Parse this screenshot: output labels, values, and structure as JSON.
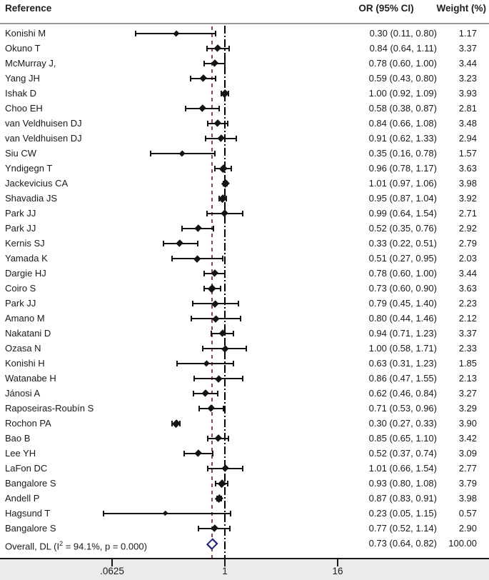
{
  "header": {
    "reference": "Reference",
    "or_ci": "OR (95% CI)",
    "weight": "Weight (%)"
  },
  "axis": {
    "tick_labels": [
      ".0625",
      "1",
      "16"
    ],
    "tick_values": [
      0.0625,
      1,
      16
    ]
  },
  "colors": {
    "marker": "#141414",
    "overall_diamond_border": "#23238c",
    "overall_effect_line": "#9c4040",
    "null_line": "#000000",
    "footer_band": "#ebebeb"
  },
  "chart_data": {
    "type": "scatter",
    "subtype": "forest-plot",
    "title": "",
    "xlabel": "",
    "x_scale": "log2",
    "x_ticks": [
      0.0625,
      1,
      16
    ],
    "x_tick_labels": [
      ".0625",
      "1",
      "16"
    ],
    "null_line_x": 1,
    "overall_effect_line_x": 0.73,
    "legend_position": "none",
    "grid": false,
    "columns": [
      "Reference",
      "OR (95% CI)",
      "Weight (%)"
    ],
    "studies": [
      {
        "name": "Konishi M",
        "or": 0.3,
        "ci_low": 0.11,
        "ci_high": 0.8,
        "weight": 1.17
      },
      {
        "name": "Okuno T",
        "or": 0.84,
        "ci_low": 0.64,
        "ci_high": 1.11,
        "weight": 3.37
      },
      {
        "name": "McMurray J,",
        "or": 0.78,
        "ci_low": 0.6,
        "ci_high": 1.0,
        "weight": 3.44
      },
      {
        "name": "Yang JH",
        "or": 0.59,
        "ci_low": 0.43,
        "ci_high": 0.8,
        "weight": 3.23
      },
      {
        "name": "Ishak D",
        "or": 1.0,
        "ci_low": 0.92,
        "ci_high": 1.09,
        "weight": 3.93
      },
      {
        "name": "Choo EH",
        "or": 0.58,
        "ci_low": 0.38,
        "ci_high": 0.87,
        "weight": 2.81
      },
      {
        "name": "van Veldhuisen DJ",
        "or": 0.84,
        "ci_low": 0.66,
        "ci_high": 1.08,
        "weight": 3.48
      },
      {
        "name": "van Veldhuisen DJ",
        "or": 0.91,
        "ci_low": 0.62,
        "ci_high": 1.33,
        "weight": 2.94
      },
      {
        "name": "Siu CW",
        "or": 0.35,
        "ci_low": 0.16,
        "ci_high": 0.78,
        "weight": 1.57
      },
      {
        "name": "Yndigegn T",
        "or": 0.96,
        "ci_low": 0.78,
        "ci_high": 1.17,
        "weight": 3.63
      },
      {
        "name": "Jackevicius CA",
        "or": 1.01,
        "ci_low": 0.97,
        "ci_high": 1.06,
        "weight": 3.98
      },
      {
        "name": "Shavadia JS",
        "or": 0.95,
        "ci_low": 0.87,
        "ci_high": 1.04,
        "weight": 3.92
      },
      {
        "name": "Park JJ",
        "or": 0.99,
        "ci_low": 0.64,
        "ci_high": 1.54,
        "weight": 2.71
      },
      {
        "name": "Park JJ",
        "or": 0.52,
        "ci_low": 0.35,
        "ci_high": 0.76,
        "weight": 2.92
      },
      {
        "name": "Kernis SJ",
        "or": 0.33,
        "ci_low": 0.22,
        "ci_high": 0.51,
        "weight": 2.79
      },
      {
        "name": "Yamada K",
        "or": 0.51,
        "ci_low": 0.27,
        "ci_high": 0.95,
        "weight": 2.03
      },
      {
        "name": "Dargie HJ",
        "or": 0.78,
        "ci_low": 0.6,
        "ci_high": 1.0,
        "weight": 3.44
      },
      {
        "name": "Coiro S",
        "or": 0.73,
        "ci_low": 0.6,
        "ci_high": 0.9,
        "weight": 3.63
      },
      {
        "name": "Park JJ",
        "or": 0.79,
        "ci_low": 0.45,
        "ci_high": 1.4,
        "weight": 2.23
      },
      {
        "name": "Amano M",
        "or": 0.8,
        "ci_low": 0.44,
        "ci_high": 1.46,
        "weight": 2.12
      },
      {
        "name": "Nakatani D",
        "or": 0.94,
        "ci_low": 0.71,
        "ci_high": 1.23,
        "weight": 3.37
      },
      {
        "name": "Ozasa N",
        "or": 1.0,
        "ci_low": 0.58,
        "ci_high": 1.71,
        "weight": 2.33
      },
      {
        "name": "Konishi H",
        "or": 0.63,
        "ci_low": 0.31,
        "ci_high": 1.23,
        "weight": 1.85
      },
      {
        "name": "Watanabe H",
        "or": 0.86,
        "ci_low": 0.47,
        "ci_high": 1.55,
        "weight": 2.13
      },
      {
        "name": "Jánosi A",
        "or": 0.62,
        "ci_low": 0.46,
        "ci_high": 0.84,
        "weight": 3.27
      },
      {
        "name": "Raposeiras-Roubín S",
        "or": 0.71,
        "ci_low": 0.53,
        "ci_high": 0.96,
        "weight": 3.29
      },
      {
        "name": "Rochon PA",
        "or": 0.3,
        "ci_low": 0.27,
        "ci_high": 0.33,
        "weight": 3.9
      },
      {
        "name": "Bao B",
        "or": 0.85,
        "ci_low": 0.65,
        "ci_high": 1.1,
        "weight": 3.42
      },
      {
        "name": "Lee YH",
        "or": 0.52,
        "ci_low": 0.37,
        "ci_high": 0.74,
        "weight": 3.09
      },
      {
        "name": "LaFon DC",
        "or": 1.01,
        "ci_low": 0.66,
        "ci_high": 1.54,
        "weight": 2.77
      },
      {
        "name": "Bangalore S",
        "or": 0.93,
        "ci_low": 0.8,
        "ci_high": 1.08,
        "weight": 3.79
      },
      {
        "name": "Andell P",
        "or": 0.87,
        "ci_low": 0.83,
        "ci_high": 0.91,
        "weight": 3.98
      },
      {
        "name": "Hagsund T",
        "or": 0.23,
        "ci_low": 0.05,
        "ci_high": 1.15,
        "weight": 0.57
      },
      {
        "name": "Bangalore S",
        "or": 0.77,
        "ci_low": 0.52,
        "ci_high": 1.14,
        "weight": 2.9
      }
    ],
    "overall": {
      "label_prefix": "Overall, DL (I",
      "label_sup": "2",
      "label_suffix": " = 94.1%, p = 0.000)",
      "i_squared": "94.1%",
      "p_value": "0.000",
      "or": 0.73,
      "ci_low": 0.64,
      "ci_high": 0.82,
      "weight": 100.0
    }
  }
}
